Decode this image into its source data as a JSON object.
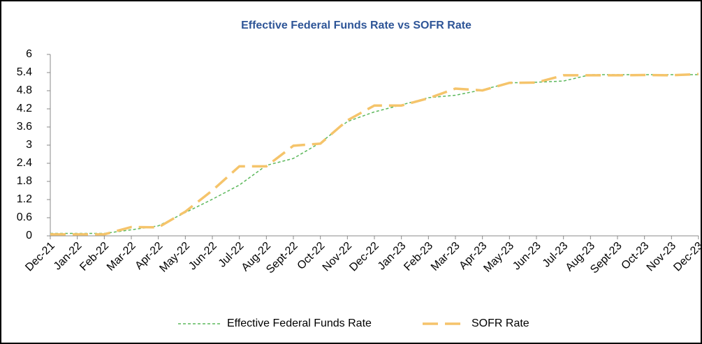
{
  "chart_data": {
    "type": "line",
    "title": "Effective Federal Funds Rate vs SOFR Rate",
    "categories": [
      "Dec-21",
      "Jan-22",
      "Feb-22",
      "Mar-22",
      "Apr-22",
      "May-22",
      "Jun-22",
      "Jul-22",
      "Aug-22",
      "Sept-22",
      "Oct-22",
      "Nov-22",
      "Dec-22",
      "Jan-23",
      "Feb-23",
      "Mar-23",
      "Apr-23",
      "May-23",
      "Jun-23",
      "Jul-23",
      "Aug-23",
      "Sept-23",
      "Oct-23",
      "Nov-23",
      "Dec-23"
    ],
    "series": [
      {
        "name": "Effective Federal Funds Rate",
        "color": "#5cb85c",
        "dash": "short",
        "values": [
          0.08,
          0.08,
          0.08,
          0.2,
          0.33,
          0.77,
          1.21,
          1.68,
          2.33,
          2.56,
          3.08,
          3.78,
          4.1,
          4.33,
          4.57,
          4.65,
          4.83,
          5.06,
          5.08,
          5.12,
          5.33,
          5.33,
          5.33,
          5.33,
          5.33
        ]
      },
      {
        "name": "SOFR Rate",
        "color": "#f5c46b",
        "dash": "long",
        "values": [
          0.05,
          0.05,
          0.05,
          0.29,
          0.28,
          0.8,
          1.5,
          2.3,
          2.3,
          2.98,
          3.05,
          3.82,
          4.31,
          4.31,
          4.55,
          4.87,
          4.81,
          5.06,
          5.07,
          5.31,
          5.31,
          5.31,
          5.32,
          5.31,
          5.35
        ]
      }
    ],
    "ylim": [
      0,
      6
    ],
    "yticks": [
      0,
      0.6,
      1.2,
      1.8,
      2.4,
      3,
      3.6,
      4.2,
      4.8,
      5.4,
      6
    ],
    "legend": "bottom",
    "grid": false
  }
}
